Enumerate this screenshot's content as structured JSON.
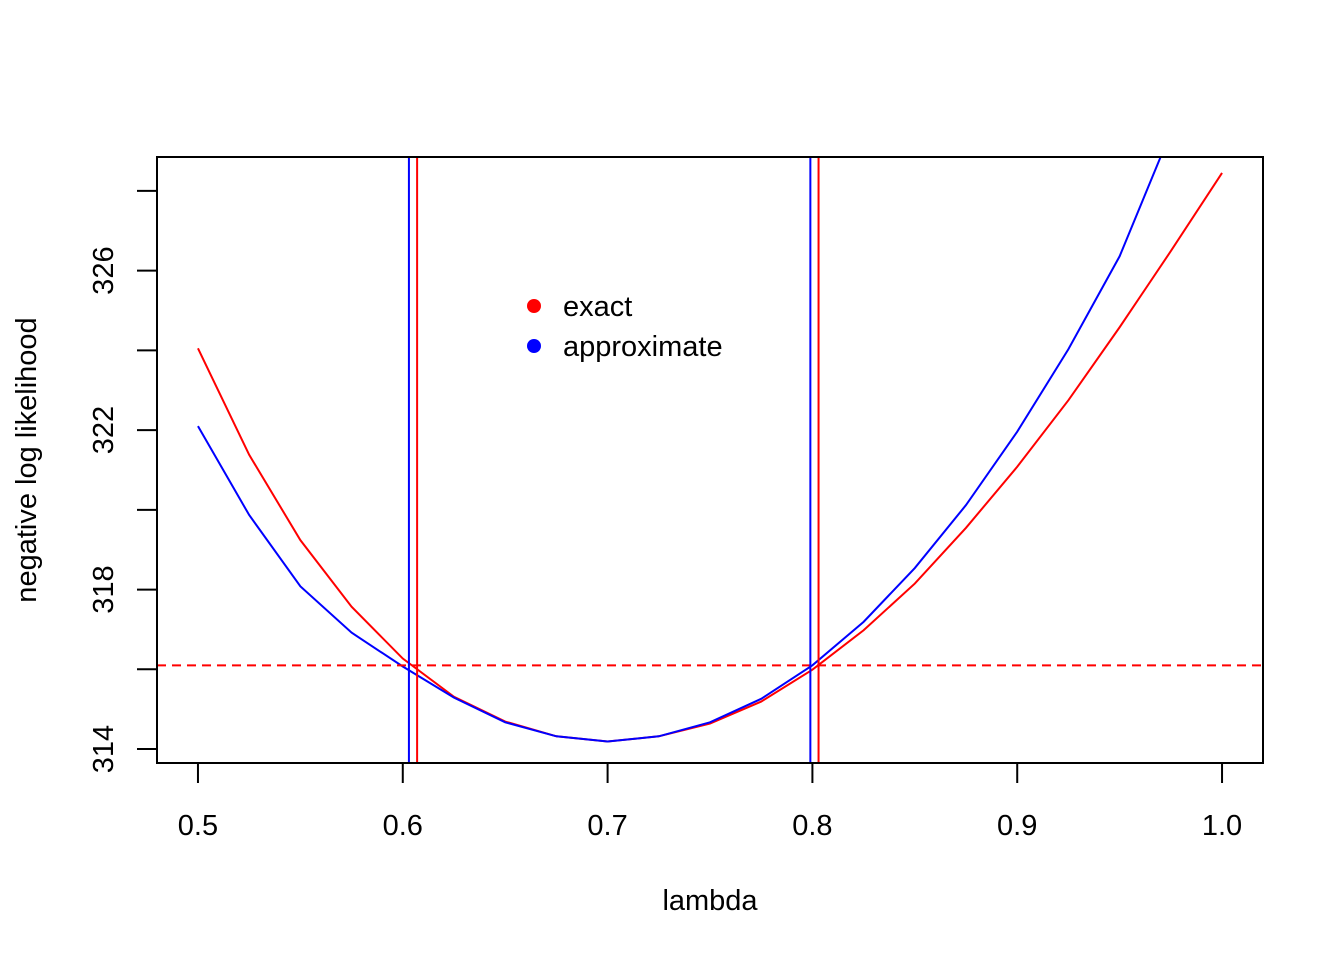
{
  "chart_data": {
    "type": "line",
    "title": "",
    "xlabel": "lambda",
    "ylabel": "negative log likelihood",
    "xlim": [
      0.48,
      1.02
    ],
    "ylim": [
      313.65,
      328.85
    ],
    "xticks": [
      0.5,
      0.6,
      0.7,
      0.8,
      0.9,
      1.0
    ],
    "xtick_labels": [
      "0.5",
      "0.6",
      "0.7",
      "0.8",
      "0.9",
      "1.0"
    ],
    "yticks": [
      314,
      316,
      318,
      320,
      322,
      324,
      326,
      328
    ],
    "ytick_labels": [
      "314",
      "",
      "318",
      "",
      "322",
      "",
      "326",
      ""
    ],
    "grid": false,
    "legend": {
      "position": "top-left-center",
      "entries": [
        {
          "label": "exact",
          "color": "#ff0000"
        },
        {
          "label": "approximate",
          "color": "#0000ff"
        }
      ]
    },
    "series": [
      {
        "name": "exact",
        "color": "#ff0000",
        "x": [
          0.5,
          0.525,
          0.55,
          0.575,
          0.6,
          0.625,
          0.65,
          0.675,
          0.7,
          0.725,
          0.75,
          0.775,
          0.8,
          0.825,
          0.85,
          0.875,
          0.9,
          0.925,
          0.95,
          0.975,
          1.0
        ],
        "y": [
          324.05,
          321.38,
          319.24,
          317.57,
          316.27,
          315.31,
          314.69,
          314.32,
          314.19,
          314.32,
          314.64,
          315.19,
          315.99,
          316.98,
          318.15,
          319.55,
          321.08,
          322.75,
          324.58,
          326.49,
          328.45
        ]
      },
      {
        "name": "approximate",
        "color": "#0000ff",
        "x": [
          0.5,
          0.525,
          0.55,
          0.575,
          0.6,
          0.625,
          0.65,
          0.675,
          0.7,
          0.725,
          0.75,
          0.775,
          0.8,
          0.825,
          0.85,
          0.875,
          0.9,
          0.925,
          0.95,
          0.97
        ],
        "y": [
          322.1,
          319.87,
          318.08,
          316.92,
          316.07,
          315.29,
          314.67,
          314.32,
          314.19,
          314.32,
          314.67,
          315.26,
          316.1,
          317.19,
          318.54,
          320.12,
          321.96,
          324.03,
          326.36,
          328.85
        ]
      }
    ],
    "hlines": [
      {
        "y": 316.1,
        "color": "#ff0000",
        "style": "dashed"
      }
    ],
    "vlines": [
      {
        "x": 0.603,
        "color": "#0000ff"
      },
      {
        "x": 0.607,
        "color": "#ff0000"
      },
      {
        "x": 0.799,
        "color": "#0000ff"
      },
      {
        "x": 0.803,
        "color": "#ff0000"
      }
    ]
  }
}
